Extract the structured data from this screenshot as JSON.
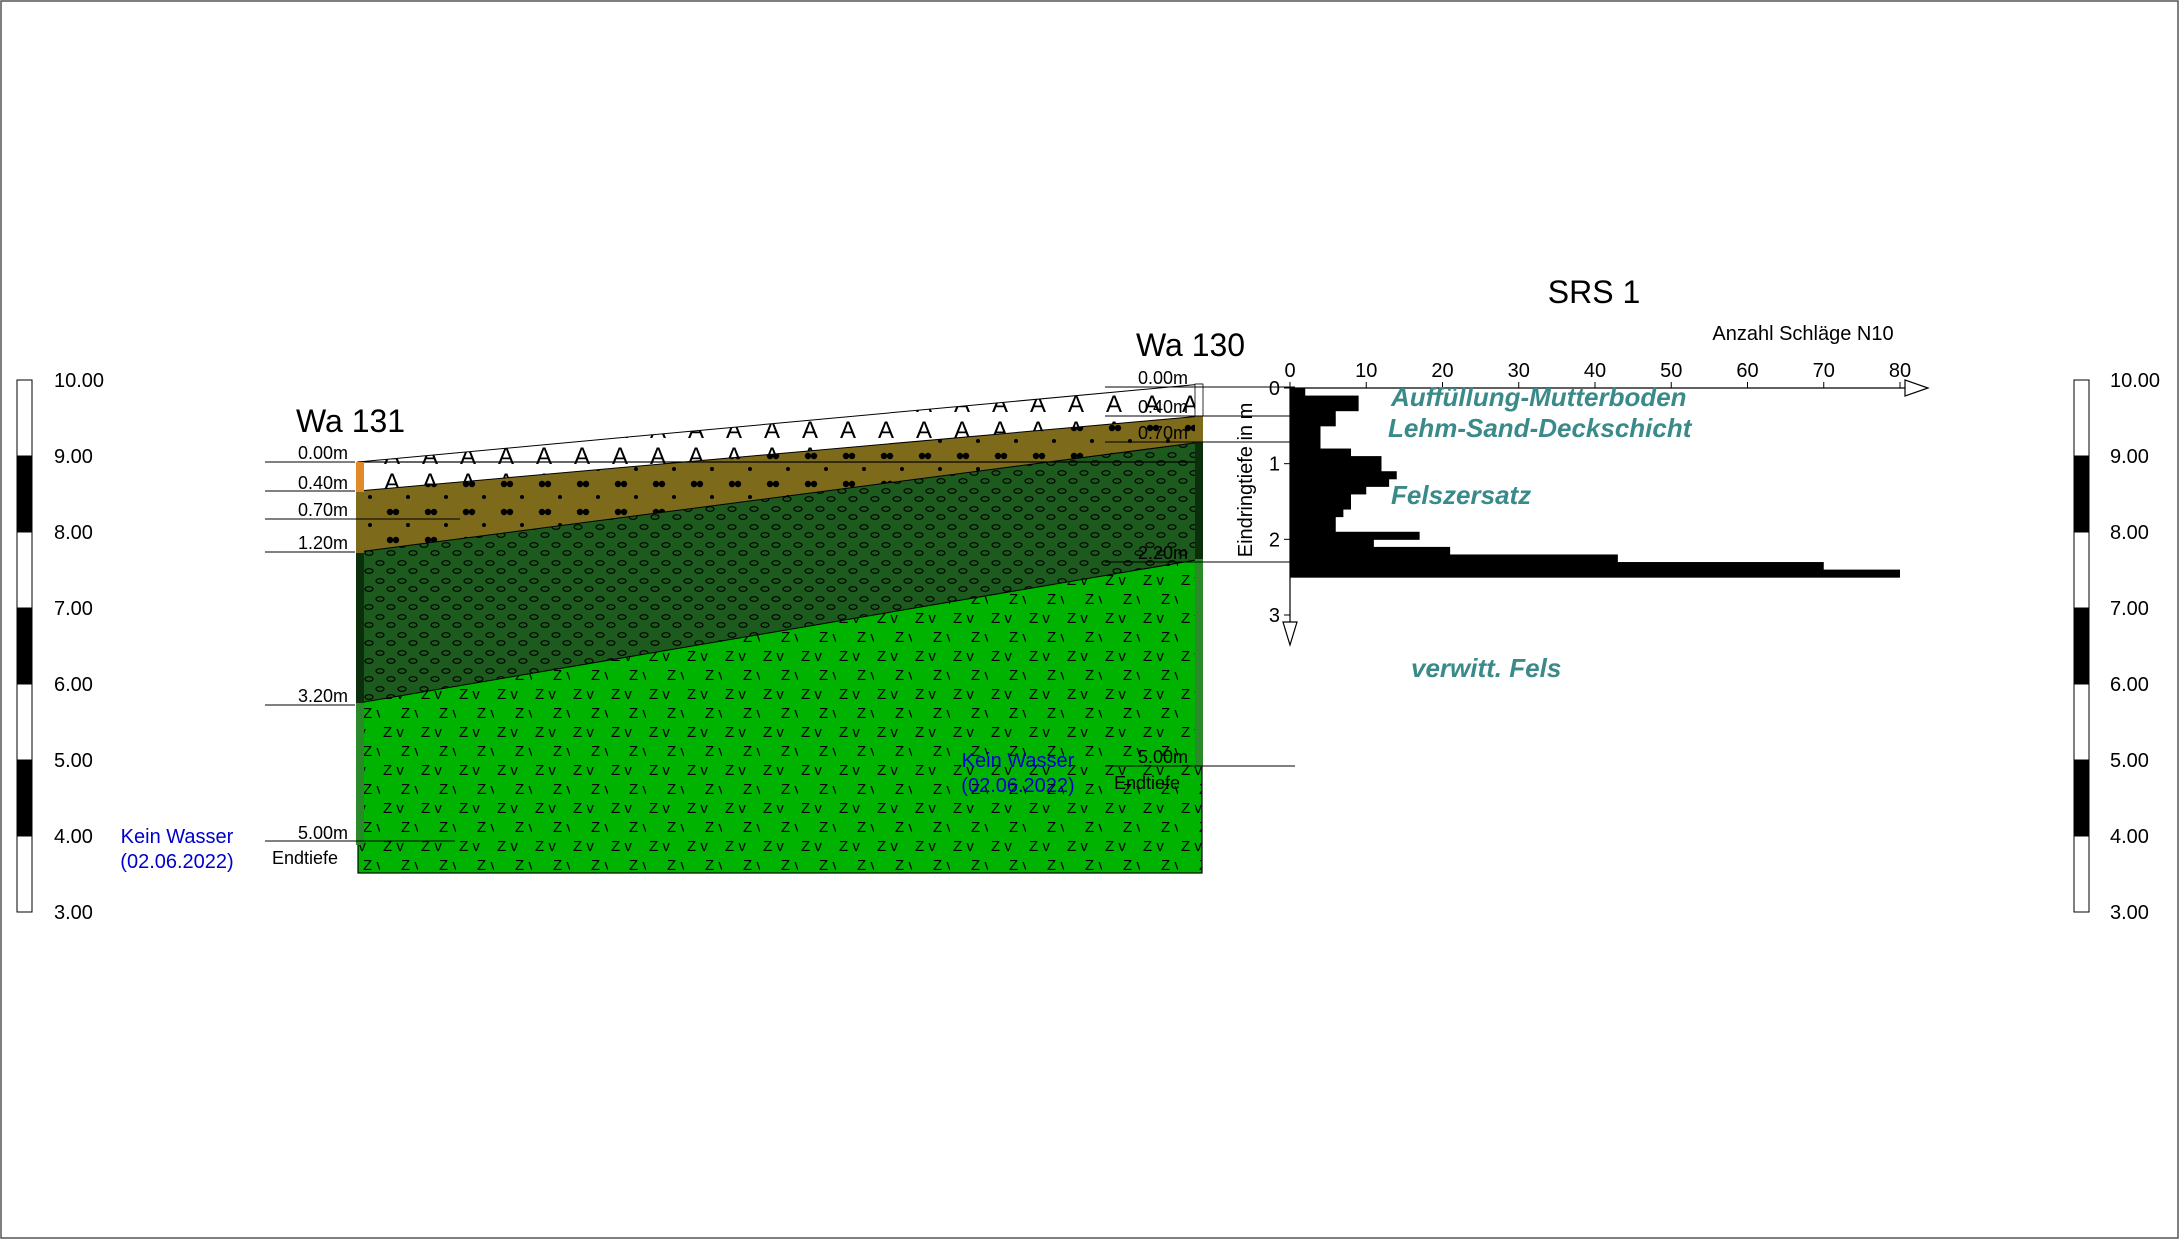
{
  "scale_labels": [
    "10.00",
    "9.00",
    "8.00",
    "7.00",
    "6.00",
    "5.00",
    "4.00",
    "3.00"
  ],
  "boreholes": [
    {
      "name": "Wa 131",
      "depth_labels": [
        "0.00m",
        "0.40m",
        "0.70m",
        "1.20m",
        "3.20m",
        "5.00m"
      ],
      "end_label": "Endtiefe",
      "water_line1": "Kein Wasser",
      "water_line2": "(02.06.2022)"
    },
    {
      "name": "Wa 130",
      "depth_labels": [
        "0.00m",
        "0.40m",
        "0.70m",
        "2.20m",
        "5.00m"
      ],
      "end_label": "Endtiefe",
      "water_line1": "Kein Wasser",
      "water_line2": "(02.06.2022)"
    }
  ],
  "srs": {
    "title": "SRS 1",
    "x_axis_label": "Anzahl Schläge N10",
    "y_axis_label": "Eindringtiefe in m",
    "x_ticks": [
      "0",
      "10",
      "20",
      "30",
      "40",
      "50",
      "60",
      "70",
      "80"
    ],
    "y_ticks": [
      "0",
      "1",
      "2",
      "3"
    ]
  },
  "layer_labels": [
    "Auffüllung-Mutterboden",
    "Lehm-Sand-Deckschicht",
    "Felszersatz",
    "verwitt. Fels"
  ],
  "colors": {
    "fill_layer": "#ffffff",
    "loam_layer": "#7d6a1a",
    "decomposed_rock": "#1d5a1d",
    "weathered_rock": "#00b300",
    "water_text": "#0000cc",
    "layer_label": "#3a8a8a",
    "accent_orange": "#e08a2a"
  },
  "chart_data": {
    "type": "bar",
    "title": "SRS 1",
    "xlabel": "Anzahl Schläge N10",
    "ylabel": "Eindringtiefe in m",
    "orientation": "horizontal",
    "xlim": [
      0,
      80
    ],
    "ylim": [
      0,
      3
    ],
    "depth_intervals_m": [
      [
        0.0,
        0.1
      ],
      [
        0.1,
        0.2
      ],
      [
        0.2,
        0.3
      ],
      [
        0.3,
        0.4
      ],
      [
        0.4,
        0.5
      ],
      [
        0.5,
        0.6
      ],
      [
        0.6,
        0.7
      ],
      [
        0.7,
        0.8
      ],
      [
        0.8,
        0.9
      ],
      [
        0.9,
        1.0
      ],
      [
        1.0,
        1.1
      ],
      [
        1.1,
        1.2
      ],
      [
        1.2,
        1.3
      ],
      [
        1.3,
        1.4
      ],
      [
        1.4,
        1.5
      ],
      [
        1.5,
        1.6
      ],
      [
        1.6,
        1.7
      ],
      [
        1.7,
        1.8
      ],
      [
        1.8,
        1.9
      ],
      [
        1.9,
        2.0
      ],
      [
        2.0,
        2.1
      ],
      [
        2.1,
        2.2
      ],
      [
        2.2,
        2.3
      ],
      [
        2.3,
        2.4
      ],
      [
        2.4,
        2.5
      ]
    ],
    "values": [
      2,
      9,
      9,
      6,
      6,
      4,
      4,
      4,
      8,
      12,
      12,
      14,
      13,
      10,
      8,
      8,
      7,
      6,
      6,
      17,
      11,
      21,
      43,
      70,
      80
    ]
  }
}
